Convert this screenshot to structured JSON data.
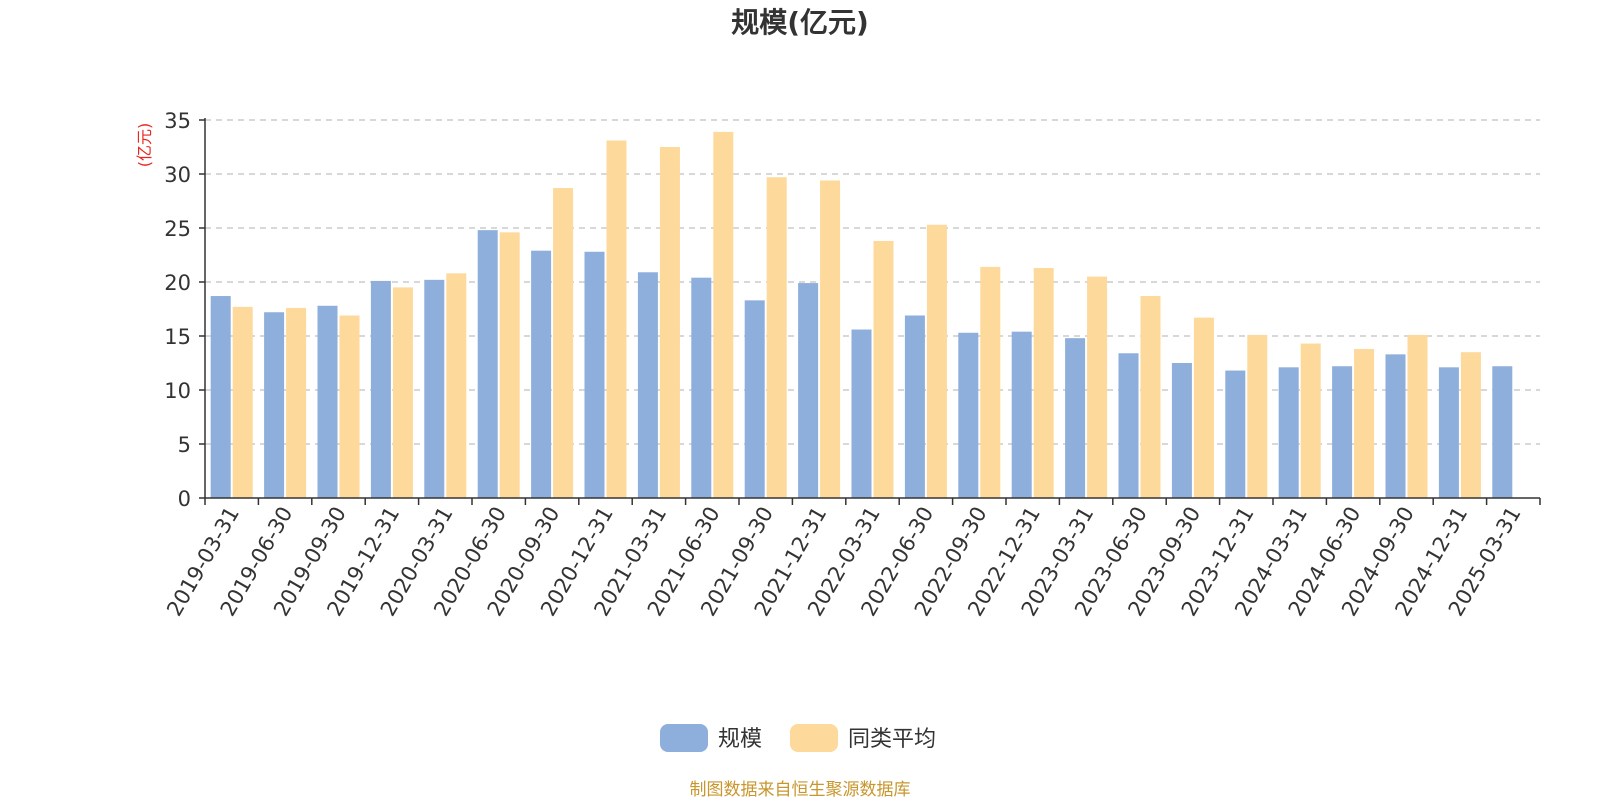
{
  "chart_data": {
    "type": "bar",
    "title": "规模(亿元)",
    "ylabel": "(亿元)",
    "ylim": [
      0,
      35
    ],
    "yticks": [
      0,
      5,
      10,
      15,
      20,
      25,
      30,
      35
    ],
    "grid": "horizontal-dashed",
    "legend_placement": "bottom-center",
    "categories": [
      "2019-03-31",
      "2019-06-30",
      "2019-09-30",
      "2019-12-31",
      "2020-03-31",
      "2020-06-30",
      "2020-09-30",
      "2020-12-31",
      "2021-03-31",
      "2021-06-30",
      "2021-09-30",
      "2021-12-31",
      "2022-03-31",
      "2022-06-30",
      "2022-09-30",
      "2022-12-31",
      "2023-03-31",
      "2023-06-30",
      "2023-09-30",
      "2023-12-31",
      "2024-03-31",
      "2024-06-30",
      "2024-09-30",
      "2024-12-31",
      "2025-03-31"
    ],
    "series": [
      {
        "name": "规模",
        "color": "#8eaedb",
        "values": [
          18.7,
          17.2,
          17.8,
          20.1,
          20.2,
          24.8,
          22.9,
          22.8,
          20.9,
          20.4,
          18.3,
          19.9,
          15.6,
          16.9,
          15.3,
          15.4,
          14.8,
          13.4,
          12.5,
          11.8,
          12.1,
          12.2,
          13.3,
          12.1,
          12.2
        ]
      },
      {
        "name": "同类平均",
        "color": "#fdd99b",
        "values": [
          17.7,
          17.6,
          16.9,
          19.5,
          20.8,
          24.6,
          28.7,
          33.1,
          32.5,
          33.9,
          29.7,
          29.4,
          23.8,
          25.3,
          21.4,
          21.3,
          20.5,
          18.7,
          16.7,
          15.1,
          14.3,
          13.8,
          15.1,
          13.5,
          null
        ]
      }
    ]
  },
  "source_note": "制图数据来自恒生聚源数据库",
  "colors": {
    "axis": "#333333",
    "grid": "#cccccc",
    "unit_label": "#e8261f",
    "source_note": "#c8962c"
  }
}
